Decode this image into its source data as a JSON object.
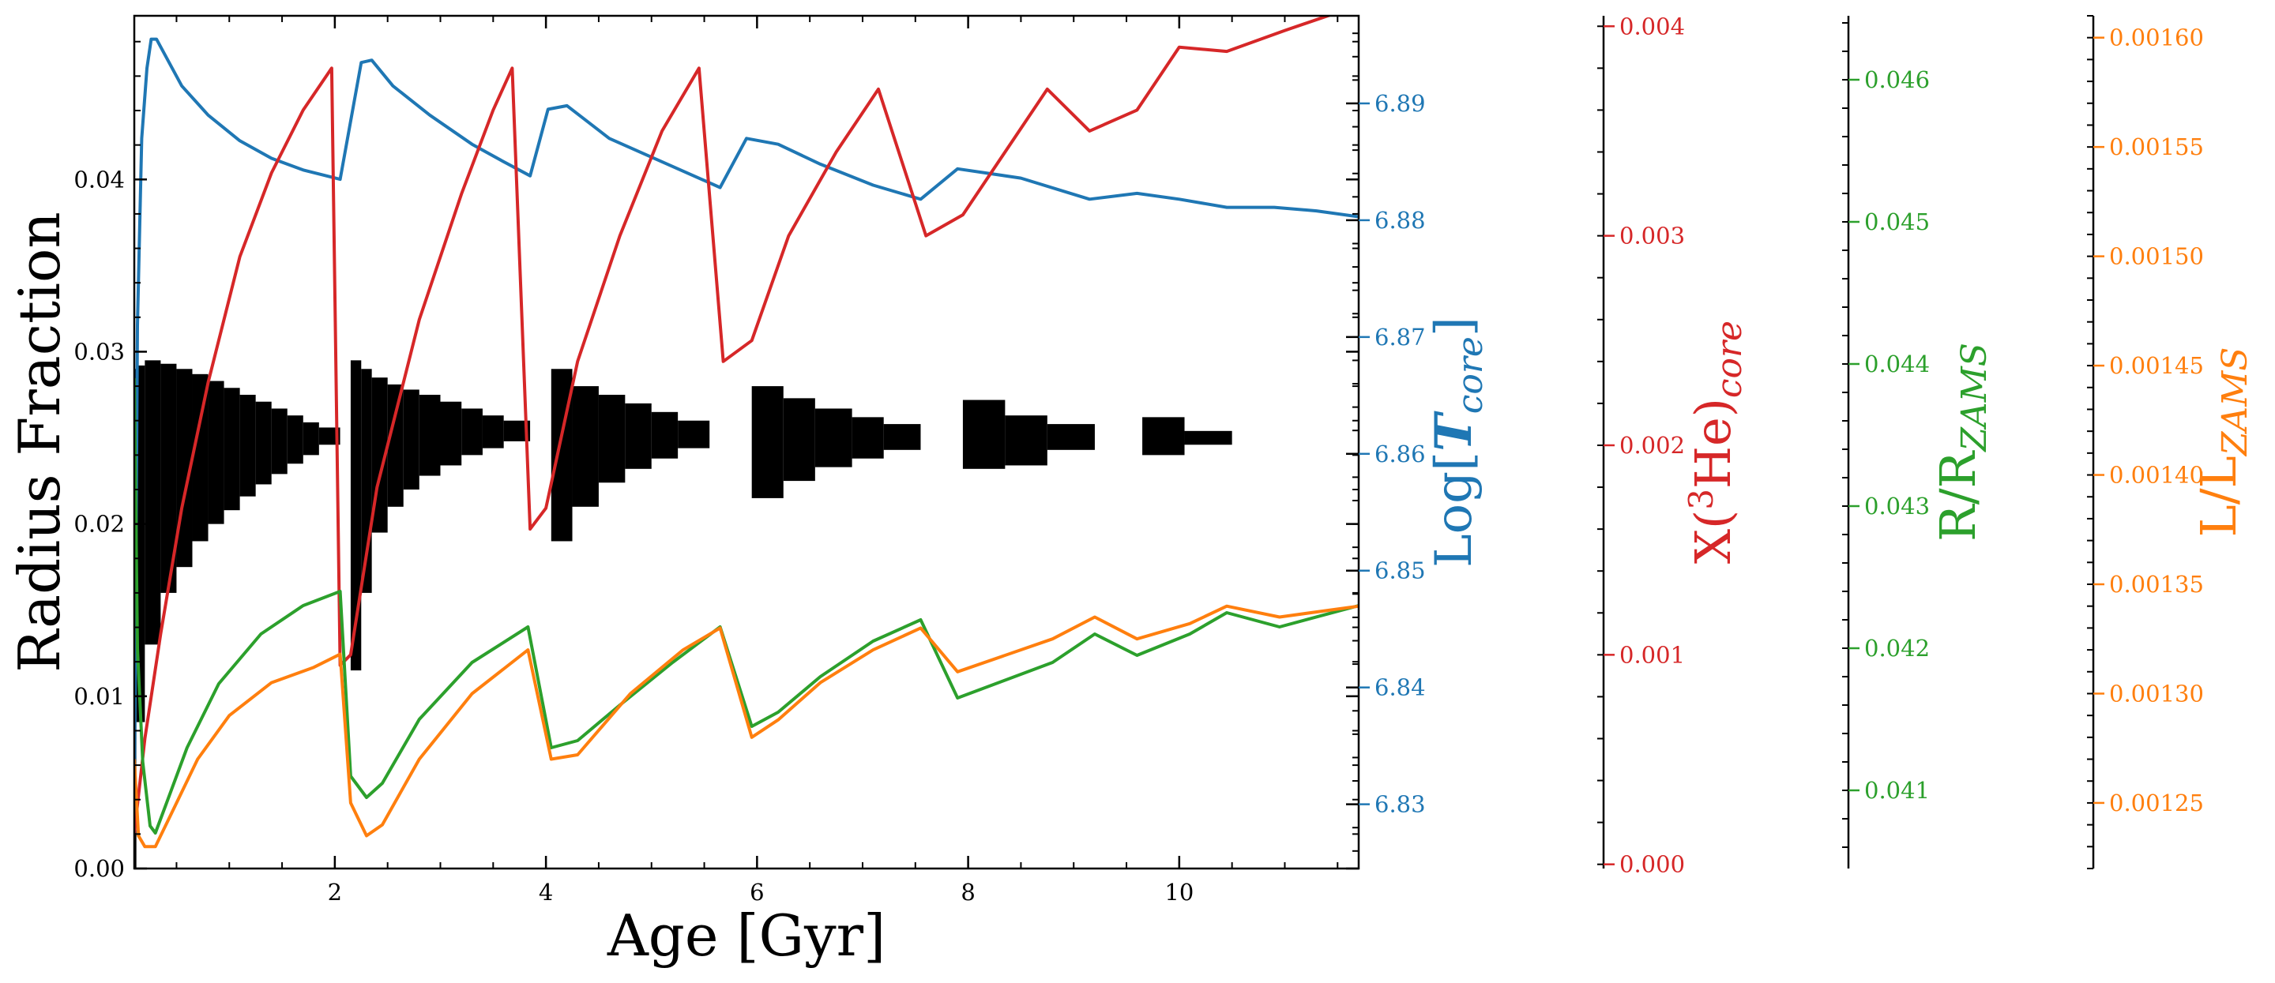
{
  "chart_data": {
    "type": "line",
    "x_axis": {
      "label": "Age [Gyr]",
      "range": [
        0.1,
        11.7
      ],
      "ticks": [
        2,
        4,
        6,
        8,
        10
      ],
      "tick_labels": [
        "2",
        "4",
        "6",
        "8",
        "10"
      ]
    },
    "y_axes": [
      {
        "id": "radius",
        "label": "Radius Fraction",
        "color": "#000000",
        "range": [
          0.0,
          0.0495
        ],
        "ticks": [
          0.0,
          0.01,
          0.02,
          0.03,
          0.04
        ],
        "tick_labels": [
          "0.00",
          "0.01",
          "0.02",
          "0.03",
          "0.04"
        ]
      },
      {
        "id": "logtc",
        "label_main": "Log[",
        "label_italic": "T",
        "label_sub": "core",
        "label_end": "]",
        "color": "#1f77b4",
        "range": [
          6.8245,
          6.8975
        ],
        "ticks": [
          6.83,
          6.84,
          6.85,
          6.86,
          6.87,
          6.88,
          6.89
        ],
        "tick_labels": [
          "6.83",
          "6.84",
          "6.85",
          "6.86",
          "6.87",
          "6.88",
          "6.89"
        ]
      },
      {
        "id": "xhe3",
        "label_main": "X(",
        "label_sup": "3",
        "label_mid": "He)",
        "label_sub": "core",
        "color": "#d62728",
        "range": [
          -2e-05,
          0.00405
        ],
        "ticks": [
          0.0,
          0.001,
          0.002,
          0.003,
          0.004
        ],
        "tick_labels": [
          "0.000",
          "0.001",
          "0.002",
          "0.003",
          "0.004"
        ]
      },
      {
        "id": "rzams",
        "label_main": "R/R",
        "label_sub": "ZAMS",
        "color": "#2ca02c",
        "range": [
          0.04045,
          0.04645
        ],
        "ticks": [
          0.041,
          0.042,
          0.043,
          0.044,
          0.045,
          0.046
        ],
        "tick_labels": [
          "0.041",
          "0.042",
          "0.043",
          "0.044",
          "0.045",
          "0.046"
        ]
      },
      {
        "id": "lzams",
        "label_main": "L/L",
        "label_sub": "ZAMS",
        "color": "#ff7f0e",
        "range": [
          0.00122,
          0.00161
        ],
        "ticks": [
          0.00125,
          0.0013,
          0.00135,
          0.0014,
          0.00145,
          0.0015,
          0.00155,
          0.0016
        ],
        "tick_labels": [
          "0.00125",
          "0.00130",
          "0.00135",
          "0.00140",
          "0.00145",
          "0.00150",
          "0.00155",
          "0.00160"
        ]
      }
    ],
    "series": [
      {
        "axis": "logtc",
        "color": "#1f77b4",
        "points": [
          [
            0.1,
            6.829
          ],
          [
            0.13,
            6.871
          ],
          [
            0.17,
            6.887
          ],
          [
            0.22,
            6.893
          ],
          [
            0.26,
            6.8955
          ],
          [
            0.31,
            6.8955
          ],
          [
            0.4,
            6.894
          ],
          [
            0.55,
            6.8915
          ],
          [
            0.8,
            6.889
          ],
          [
            1.1,
            6.8868
          ],
          [
            1.4,
            6.8853
          ],
          [
            1.7,
            6.8843
          ],
          [
            2.05,
            6.8835
          ],
          [
            2.25,
            6.8935
          ],
          [
            2.35,
            6.8937
          ],
          [
            2.55,
            6.8915
          ],
          [
            2.9,
            6.889
          ],
          [
            3.3,
            6.8865
          ],
          [
            3.6,
            6.885
          ],
          [
            3.85,
            6.8838
          ],
          [
            4.02,
            6.8895
          ],
          [
            4.2,
            6.8898
          ],
          [
            4.6,
            6.887
          ],
          [
            5.1,
            6.885
          ],
          [
            5.65,
            6.8828
          ],
          [
            5.9,
            6.887
          ],
          [
            6.2,
            6.8865
          ],
          [
            6.6,
            6.8848
          ],
          [
            7.1,
            6.883
          ],
          [
            7.55,
            6.8818
          ],
          [
            7.9,
            6.8844
          ],
          [
            8.5,
            6.8836
          ],
          [
            9.15,
            6.8818
          ],
          [
            9.6,
            6.8823
          ],
          [
            10.0,
            6.8818
          ],
          [
            10.45,
            6.8811
          ],
          [
            10.9,
            6.8811
          ],
          [
            11.3,
            6.8808
          ],
          [
            11.7,
            6.8803
          ]
        ]
      },
      {
        "axis": "xhe3",
        "color": "#d62728",
        "points": [
          [
            0.1,
            0.00015
          ],
          [
            0.2,
            0.0006
          ],
          [
            0.35,
            0.0011
          ],
          [
            0.55,
            0.0017
          ],
          [
            0.8,
            0.0023
          ],
          [
            1.1,
            0.0029
          ],
          [
            1.4,
            0.0033
          ],
          [
            1.7,
            0.0036
          ],
          [
            1.97,
            0.0038
          ],
          [
            2.05,
            0.00095
          ],
          [
            2.15,
            0.001
          ],
          [
            2.4,
            0.0018
          ],
          [
            2.8,
            0.0026
          ],
          [
            3.2,
            0.0032
          ],
          [
            3.5,
            0.0036
          ],
          [
            3.68,
            0.0038
          ],
          [
            3.85,
            0.0016
          ],
          [
            4.0,
            0.0017
          ],
          [
            4.3,
            0.0024
          ],
          [
            4.7,
            0.003
          ],
          [
            5.1,
            0.0035
          ],
          [
            5.45,
            0.0038
          ],
          [
            5.68,
            0.0024
          ],
          [
            5.95,
            0.0025
          ],
          [
            6.3,
            0.003
          ],
          [
            6.75,
            0.0034
          ],
          [
            7.15,
            0.0037
          ],
          [
            7.6,
            0.003
          ],
          [
            7.95,
            0.0031
          ],
          [
            8.75,
            0.0037
          ],
          [
            9.15,
            0.0035
          ],
          [
            9.6,
            0.0036
          ],
          [
            10.0,
            0.0039
          ],
          [
            10.45,
            0.00388
          ],
          [
            11.0,
            0.00398
          ],
          [
            11.7,
            0.0041
          ]
        ]
      },
      {
        "axis": "rzams",
        "color": "#2ca02c",
        "points": [
          [
            0.1,
            0.0439
          ],
          [
            0.13,
            0.042
          ],
          [
            0.18,
            0.0412
          ],
          [
            0.25,
            0.04075
          ],
          [
            0.3,
            0.0407
          ],
          [
            0.4,
            0.0409
          ],
          [
            0.6,
            0.0413
          ],
          [
            0.9,
            0.04175
          ],
          [
            1.3,
            0.0421
          ],
          [
            1.7,
            0.0423
          ],
          [
            2.05,
            0.0424
          ],
          [
            2.15,
            0.0411
          ],
          [
            2.3,
            0.04095
          ],
          [
            2.45,
            0.04105
          ],
          [
            2.8,
            0.0415
          ],
          [
            3.3,
            0.0419
          ],
          [
            3.83,
            0.04215
          ],
          [
            4.05,
            0.0413
          ],
          [
            4.3,
            0.04135
          ],
          [
            4.7,
            0.0416
          ],
          [
            5.2,
            0.0419
          ],
          [
            5.65,
            0.04215
          ],
          [
            5.95,
            0.04145
          ],
          [
            6.2,
            0.04155
          ],
          [
            6.6,
            0.0418
          ],
          [
            7.1,
            0.04205
          ],
          [
            7.55,
            0.0422
          ],
          [
            7.9,
            0.04165
          ],
          [
            8.8,
            0.0419
          ],
          [
            9.2,
            0.0421
          ],
          [
            9.6,
            0.04195
          ],
          [
            10.1,
            0.0421
          ],
          [
            10.45,
            0.04225
          ],
          [
            10.95,
            0.04215
          ],
          [
            11.7,
            0.0423
          ]
        ]
      },
      {
        "axis": "lzams",
        "color": "#ff7f0e",
        "points": [
          [
            0.1,
            0.00127
          ],
          [
            0.14,
            0.001235
          ],
          [
            0.2,
            0.00123
          ],
          [
            0.3,
            0.00123
          ],
          [
            0.45,
            0.001245
          ],
          [
            0.7,
            0.00127
          ],
          [
            1.0,
            0.00129
          ],
          [
            1.4,
            0.001305
          ],
          [
            1.8,
            0.001312
          ],
          [
            2.05,
            0.001318
          ],
          [
            2.15,
            0.00125
          ],
          [
            2.3,
            0.001235
          ],
          [
            2.45,
            0.00124
          ],
          [
            2.8,
            0.00127
          ],
          [
            3.3,
            0.0013
          ],
          [
            3.83,
            0.00132
          ],
          [
            4.05,
            0.00127
          ],
          [
            4.3,
            0.001272
          ],
          [
            4.8,
            0.0013
          ],
          [
            5.3,
            0.00132
          ],
          [
            5.65,
            0.00133
          ],
          [
            5.95,
            0.00128
          ],
          [
            6.2,
            0.001288
          ],
          [
            6.6,
            0.001305
          ],
          [
            7.1,
            0.00132
          ],
          [
            7.55,
            0.00133
          ],
          [
            7.9,
            0.00131
          ],
          [
            8.8,
            0.001325
          ],
          [
            9.2,
            0.001335
          ],
          [
            9.6,
            0.001325
          ],
          [
            10.1,
            0.001332
          ],
          [
            10.45,
            0.00134
          ],
          [
            10.95,
            0.001335
          ],
          [
            11.7,
            0.00134
          ]
        ]
      }
    ],
    "convective_zones": {
      "axis": "radius",
      "color": "#000000",
      "zones": [
        {
          "x0": 0.0,
          "x1": 0.12,
          "y0": 0.0,
          "y1": 0.029
        },
        {
          "x0": 0.12,
          "x1": 0.2,
          "y0": 0.0085,
          "y1": 0.0292
        },
        {
          "x0": 0.2,
          "x1": 0.35,
          "y0": 0.013,
          "y1": 0.0295
        },
        {
          "x0": 0.35,
          "x1": 0.5,
          "y0": 0.016,
          "y1": 0.0293
        },
        {
          "x0": 0.5,
          "x1": 0.65,
          "y0": 0.0175,
          "y1": 0.029
        },
        {
          "x0": 0.65,
          "x1": 0.8,
          "y0": 0.019,
          "y1": 0.0287
        },
        {
          "x0": 0.8,
          "x1": 0.95,
          "y0": 0.02,
          "y1": 0.0283
        },
        {
          "x0": 0.95,
          "x1": 1.1,
          "y0": 0.0208,
          "y1": 0.0279
        },
        {
          "x0": 1.1,
          "x1": 1.25,
          "y0": 0.0216,
          "y1": 0.0275
        },
        {
          "x0": 1.25,
          "x1": 1.4,
          "y0": 0.0223,
          "y1": 0.0271
        },
        {
          "x0": 1.4,
          "x1": 1.55,
          "y0": 0.0229,
          "y1": 0.0267
        },
        {
          "x0": 1.55,
          "x1": 1.7,
          "y0": 0.0235,
          "y1": 0.0263
        },
        {
          "x0": 1.7,
          "x1": 1.85,
          "y0": 0.024,
          "y1": 0.0259
        },
        {
          "x0": 1.85,
          "x1": 2.05,
          "y0": 0.0246,
          "y1": 0.0256
        },
        {
          "x0": 2.15,
          "x1": 2.25,
          "y0": 0.0115,
          "y1": 0.0295
        },
        {
          "x0": 2.25,
          "x1": 2.35,
          "y0": 0.016,
          "y1": 0.029
        },
        {
          "x0": 2.35,
          "x1": 2.5,
          "y0": 0.0195,
          "y1": 0.0285
        },
        {
          "x0": 2.5,
          "x1": 2.65,
          "y0": 0.021,
          "y1": 0.0281
        },
        {
          "x0": 2.65,
          "x1": 2.8,
          "y0": 0.022,
          "y1": 0.0278
        },
        {
          "x0": 2.8,
          "x1": 3.0,
          "y0": 0.0228,
          "y1": 0.0275
        },
        {
          "x0": 3.0,
          "x1": 3.2,
          "y0": 0.0234,
          "y1": 0.0271
        },
        {
          "x0": 3.2,
          "x1": 3.4,
          "y0": 0.024,
          "y1": 0.0267
        },
        {
          "x0": 3.4,
          "x1": 3.6,
          "y0": 0.0244,
          "y1": 0.0263
        },
        {
          "x0": 3.6,
          "x1": 3.85,
          "y0": 0.0248,
          "y1": 0.026
        },
        {
          "x0": 4.05,
          "x1": 4.25,
          "y0": 0.019,
          "y1": 0.029
        },
        {
          "x0": 4.25,
          "x1": 4.5,
          "y0": 0.021,
          "y1": 0.028
        },
        {
          "x0": 4.5,
          "x1": 4.75,
          "y0": 0.0224,
          "y1": 0.0275
        },
        {
          "x0": 4.75,
          "x1": 5.0,
          "y0": 0.0232,
          "y1": 0.027
        },
        {
          "x0": 5.0,
          "x1": 5.25,
          "y0": 0.0238,
          "y1": 0.0265
        },
        {
          "x0": 5.25,
          "x1": 5.55,
          "y0": 0.0244,
          "y1": 0.026
        },
        {
          "x0": 5.95,
          "x1": 6.25,
          "y0": 0.0215,
          "y1": 0.028
        },
        {
          "x0": 6.25,
          "x1": 6.55,
          "y0": 0.0225,
          "y1": 0.0273
        },
        {
          "x0": 6.55,
          "x1": 6.9,
          "y0": 0.0233,
          "y1": 0.0267
        },
        {
          "x0": 6.9,
          "x1": 7.2,
          "y0": 0.0238,
          "y1": 0.0262
        },
        {
          "x0": 7.2,
          "x1": 7.55,
          "y0": 0.0243,
          "y1": 0.0258
        },
        {
          "x0": 7.95,
          "x1": 8.35,
          "y0": 0.0232,
          "y1": 0.0272
        },
        {
          "x0": 8.35,
          "x1": 8.75,
          "y0": 0.0234,
          "y1": 0.0263
        },
        {
          "x0": 8.75,
          "x1": 9.2,
          "y0": 0.0243,
          "y1": 0.0258
        },
        {
          "x0": 9.65,
          "x1": 10.05,
          "y0": 0.024,
          "y1": 0.0262
        },
        {
          "x0": 10.05,
          "x1": 10.5,
          "y0": 0.0246,
          "y1": 0.0254
        }
      ]
    },
    "grid": false,
    "legend": "none"
  }
}
